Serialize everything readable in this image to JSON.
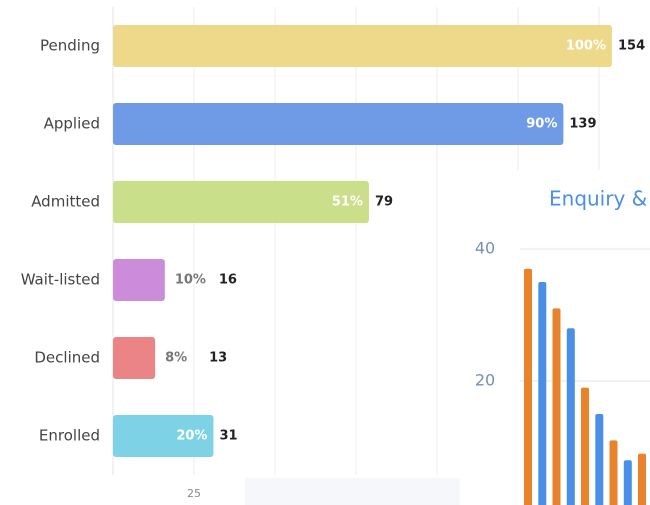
{
  "chart_data": [
    {
      "type": "hbar",
      "categories": [
        "Pending",
        "Applied",
        "Admitted",
        "Wait-listed",
        "Declined",
        "Enrolled"
      ],
      "values": [
        154,
        139,
        79,
        16,
        13,
        31
      ],
      "percent_labels": [
        "100%",
        "90%",
        "51%",
        "10%",
        "8%",
        "20%"
      ],
      "colors": [
        "#eed88a",
        "#6f9be6",
        "#cadf89",
        "#cc8cda",
        "#ea8485",
        "#7ed2e5"
      ],
      "xlim": [
        0,
        165
      ],
      "xticks": [
        25
      ],
      "grid_lines": [
        50,
        75,
        100,
        125,
        150
      ]
    },
    {
      "type": "grouped_bar",
      "title": "Enquiry &",
      "categories": [
        null,
        null,
        null,
        null,
        null
      ],
      "series": [
        {
          "color": "#e8832b",
          "values": [
            37,
            31,
            19,
            11,
            9
          ]
        },
        {
          "color": "#4a8fe7",
          "values": [
            35,
            28,
            15,
            8,
            null
          ]
        }
      ],
      "ylim": [
        0,
        45
      ],
      "yticks": [
        20,
        40
      ],
      "grid": true
    }
  ]
}
